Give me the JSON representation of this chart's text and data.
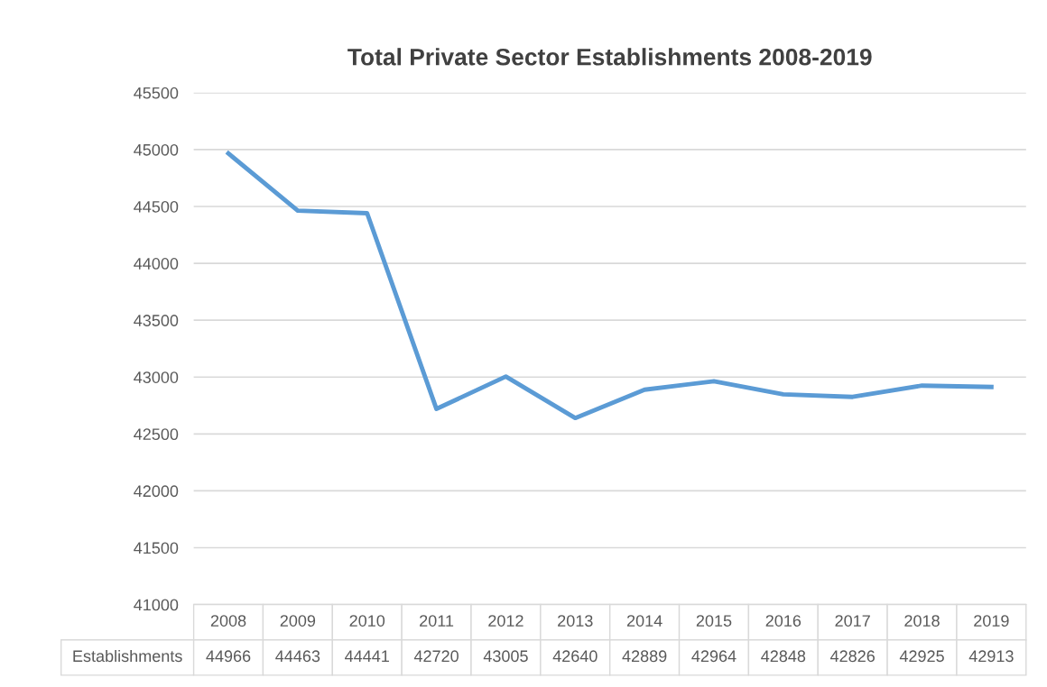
{
  "chart_data": {
    "type": "line",
    "title": "Total Private Sector Establishments 2008-2019",
    "categories": [
      "2008",
      "2009",
      "2010",
      "2011",
      "2012",
      "2013",
      "2014",
      "2015",
      "2016",
      "2017",
      "2018",
      "2019"
    ],
    "series": [
      {
        "name": "Establishments",
        "color": "#5b9bd5",
        "values": [
          44966,
          44463,
          44441,
          42720,
          43005,
          42640,
          42889,
          42964,
          42848,
          42826,
          42925,
          42913
        ]
      }
    ],
    "ylim": [
      41000,
      45500
    ],
    "yticks": [
      41000,
      41500,
      42000,
      42500,
      43000,
      43500,
      44000,
      44500,
      45000,
      45500
    ],
    "grid": "y",
    "marker": "none",
    "line_style": "solid",
    "data_labels": true
  }
}
